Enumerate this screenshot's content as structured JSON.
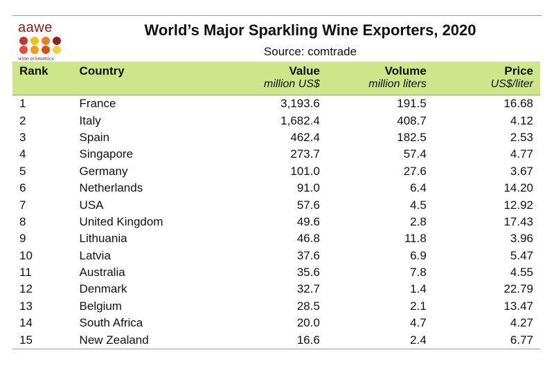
{
  "logo": {
    "name": "aawe",
    "tagline": "wine economics",
    "dot_colors": [
      "#c0392b",
      "#f1c40f",
      "#e67e22",
      "#8e2222",
      "#e74c3c",
      "#f39c12",
      "#d35400",
      "#f4d03f"
    ]
  },
  "chart_data": {
    "type": "table",
    "title": "World’s Major Sparkling Wine Exporters, 2020",
    "subtitle": "Source: comtrade",
    "header_color": "#cfe58a",
    "columns": [
      {
        "label": "Rank",
        "unit": ""
      },
      {
        "label": "Country",
        "unit": ""
      },
      {
        "label": "Value",
        "unit": "million US$"
      },
      {
        "label": "Volume",
        "unit": "million liters"
      },
      {
        "label": "Price",
        "unit": "US$/liter"
      }
    ],
    "rows": [
      [
        "1",
        "France",
        "3,193.6",
        "191.5",
        "16.68"
      ],
      [
        "2",
        "Italy",
        "1,682.4",
        "408.7",
        "4.12"
      ],
      [
        "3",
        "Spain",
        "462.4",
        "182.5",
        "2.53"
      ],
      [
        "4",
        "Singapore",
        "273.7",
        "57.4",
        "4.77"
      ],
      [
        "5",
        "Germany",
        "101.0",
        "27.6",
        "3.67"
      ],
      [
        "6",
        "Netherlands",
        "91.0",
        "6.4",
        "14.20"
      ],
      [
        "7",
        "USA",
        "57.6",
        "4.5",
        "12.92"
      ],
      [
        "8",
        "United Kingdom",
        "49.6",
        "2.8",
        "17.43"
      ],
      [
        "9",
        "Lithuania",
        "46.8",
        "11.8",
        "3.96"
      ],
      [
        "10",
        "Latvia",
        "37.6",
        "6.9",
        "5.47"
      ],
      [
        "11",
        "Australia",
        "35.6",
        "7.8",
        "4.55"
      ],
      [
        "12",
        "Denmark",
        "32.7",
        "1.4",
        "22.79"
      ],
      [
        "13",
        "Belgium",
        "28.5",
        "2.1",
        "13.47"
      ],
      [
        "14",
        "South Africa",
        "20.0",
        "4.7",
        "4.27"
      ],
      [
        "15",
        "New Zealand",
        "16.6",
        "2.4",
        "6.77"
      ]
    ]
  }
}
